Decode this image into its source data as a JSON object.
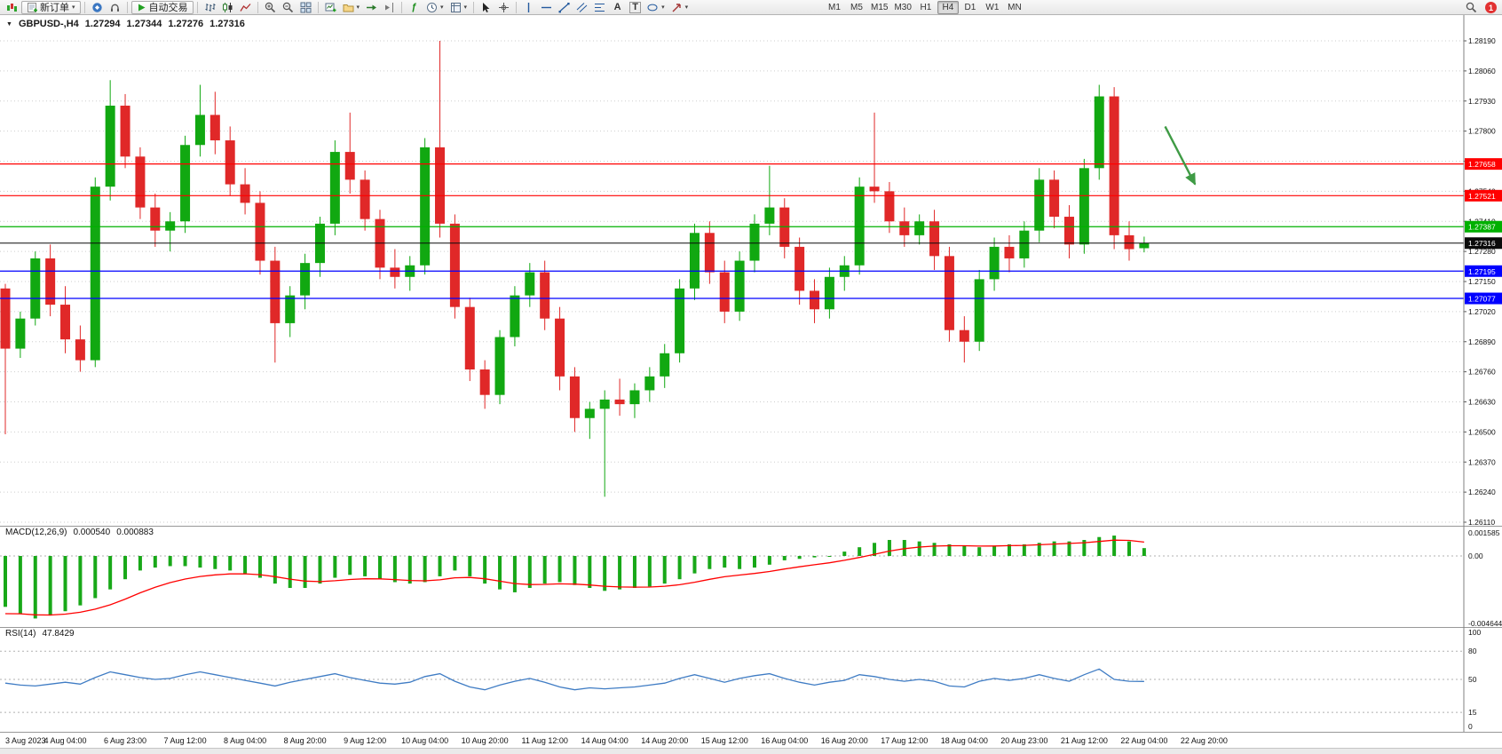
{
  "toolbar": {
    "new_order_label": "新订单",
    "autotrade_label": "自动交易",
    "timeframes": [
      "M1",
      "M5",
      "M15",
      "M30",
      "H1",
      "H4",
      "D1",
      "W1",
      "MN"
    ],
    "active_timeframe": "H4",
    "notification_badge": "1"
  },
  "glyphs": {
    "title_marker": "▼",
    "dropdown_caret": "▾",
    "text_tool": "A",
    "label_tool": "T",
    "indicators_fx": "ƒ"
  },
  "chart_header": {
    "symbol_period": "GBPUSD-,H4",
    "open": "1.27294",
    "high": "1.27344",
    "low": "1.27276",
    "close": "1.27316"
  },
  "chart_data": {
    "type": "candlestick",
    "symbol": "GBPUSD-",
    "period": "H4",
    "title": "GBPUSD-,H4",
    "ylim": [
      1.2611,
      1.2819
    ],
    "y_ticks": [
      "1.28190",
      "1.28060",
      "1.27930",
      "1.27800",
      "1.27670",
      "1.27540",
      "1.27410",
      "1.27280",
      "1.27150",
      "1.27020",
      "1.26890",
      "1.26760",
      "1.26630",
      "1.26500",
      "1.26370",
      "1.26240",
      "1.26110"
    ],
    "x_labels": [
      "3 Aug 2023",
      "4 Aug 04:00",
      "6 Aug 23:00",
      "7 Aug 12:00",
      "8 Aug 04:00",
      "8 Aug 20:00",
      "9 Aug 12:00",
      "10 Aug 04:00",
      "10 Aug 20:00",
      "11 Aug 12:00",
      "14 Aug 04:00",
      "14 Aug 20:00",
      "15 Aug 12:00",
      "16 Aug 04:00",
      "16 Aug 20:00",
      "17 Aug 12:00",
      "18 Aug 04:00",
      "20 Aug 23:00",
      "21 Aug 12:00",
      "22 Aug 04:00",
      "22 Aug 20:00"
    ],
    "candles": [
      [
        1.2712,
        1.2714,
        1.2649,
        1.2686
      ],
      [
        1.2686,
        1.2702,
        1.2682,
        1.2699
      ],
      [
        1.2699,
        1.2728,
        1.2696,
        1.2725
      ],
      [
        1.2725,
        1.2731,
        1.27,
        1.2705
      ],
      [
        1.2705,
        1.2713,
        1.2684,
        1.269
      ],
      [
        1.269,
        1.2696,
        1.2676,
        1.2681
      ],
      [
        1.2681,
        1.276,
        1.2678,
        1.2756
      ],
      [
        1.2756,
        1.2802,
        1.275,
        1.2791
      ],
      [
        1.2791,
        1.2796,
        1.2764,
        1.2769
      ],
      [
        1.2769,
        1.2773,
        1.2742,
        1.2747
      ],
      [
        1.2747,
        1.2753,
        1.273,
        1.2737
      ],
      [
        1.2737,
        1.2745,
        1.2728,
        1.2741
      ],
      [
        1.2741,
        1.2778,
        1.2736,
        1.2774
      ],
      [
        1.2774,
        1.28,
        1.2769,
        1.2787
      ],
      [
        1.2787,
        1.2797,
        1.277,
        1.2776
      ],
      [
        1.2776,
        1.2782,
        1.2752,
        1.2757
      ],
      [
        1.2757,
        1.2764,
        1.2744,
        1.2749
      ],
      [
        1.2749,
        1.2754,
        1.2718,
        1.2724
      ],
      [
        1.2724,
        1.273,
        1.268,
        1.2697
      ],
      [
        1.2697,
        1.2713,
        1.2691,
        1.2709
      ],
      [
        1.2709,
        1.2727,
        1.2703,
        1.2723
      ],
      [
        1.2723,
        1.2743,
        1.2717,
        1.274
      ],
      [
        1.274,
        1.2776,
        1.2735,
        1.2771
      ],
      [
        1.2771,
        1.2788,
        1.2753,
        1.2759
      ],
      [
        1.2759,
        1.2763,
        1.2737,
        1.2742
      ],
      [
        1.2742,
        1.2746,
        1.2716,
        1.2721
      ],
      [
        1.2721,
        1.2729,
        1.2712,
        1.2717
      ],
      [
        1.2717,
        1.2726,
        1.2711,
        1.2722
      ],
      [
        1.2722,
        1.2777,
        1.2718,
        1.2773
      ],
      [
        1.2773,
        1.2819,
        1.2734,
        1.274
      ],
      [
        1.274,
        1.2744,
        1.2699,
        1.2704
      ],
      [
        1.2704,
        1.2708,
        1.2672,
        1.2677
      ],
      [
        1.2677,
        1.2681,
        1.266,
        1.2666
      ],
      [
        1.2666,
        1.2694,
        1.2662,
        1.2691
      ],
      [
        1.2691,
        1.2713,
        1.2687,
        1.2709
      ],
      [
        1.2709,
        1.2723,
        1.2704,
        1.2719
      ],
      [
        1.2719,
        1.2724,
        1.2694,
        1.2699
      ],
      [
        1.2699,
        1.2704,
        1.2668,
        1.2674
      ],
      [
        1.2674,
        1.2678,
        1.265,
        1.2656
      ],
      [
        1.2656,
        1.2663,
        1.2647,
        1.266
      ],
      [
        1.266,
        1.2668,
        1.2622,
        1.2664
      ],
      [
        1.2664,
        1.2673,
        1.2657,
        1.2662
      ],
      [
        1.2662,
        1.2671,
        1.2656,
        1.2668
      ],
      [
        1.2668,
        1.2678,
        1.2663,
        1.2674
      ],
      [
        1.2674,
        1.2688,
        1.2669,
        1.2684
      ],
      [
        1.2684,
        1.2716,
        1.268,
        1.2712
      ],
      [
        1.2712,
        1.274,
        1.2707,
        1.2736
      ],
      [
        1.2736,
        1.2741,
        1.2714,
        1.2719
      ],
      [
        1.2719,
        1.2724,
        1.2697,
        1.2702
      ],
      [
        1.2702,
        1.2728,
        1.2698,
        1.2724
      ],
      [
        1.2724,
        1.2744,
        1.2719,
        1.274
      ],
      [
        1.274,
        1.2765,
        1.2735,
        1.2747
      ],
      [
        1.2747,
        1.2751,
        1.2725,
        1.273
      ],
      [
        1.273,
        1.2734,
        1.2705,
        1.2711
      ],
      [
        1.2711,
        1.2716,
        1.2697,
        1.2703
      ],
      [
        1.2703,
        1.2721,
        1.2699,
        1.2717
      ],
      [
        1.2717,
        1.2726,
        1.2711,
        1.2722
      ],
      [
        1.2722,
        1.276,
        1.2718,
        1.2756
      ],
      [
        1.2756,
        1.2788,
        1.2749,
        1.2754
      ],
      [
        1.2754,
        1.2758,
        1.2736,
        1.2741
      ],
      [
        1.2741,
        1.2747,
        1.273,
        1.2735
      ],
      [
        1.2735,
        1.2744,
        1.2731,
        1.2741
      ],
      [
        1.2741,
        1.2746,
        1.272,
        1.2726
      ],
      [
        1.2726,
        1.273,
        1.2689,
        1.2694
      ],
      [
        1.2694,
        1.27,
        1.268,
        1.2689
      ],
      [
        1.2689,
        1.272,
        1.2685,
        1.2716
      ],
      [
        1.2716,
        1.2734,
        1.2711,
        1.273
      ],
      [
        1.273,
        1.2735,
        1.2719,
        1.2725
      ],
      [
        1.2725,
        1.2741,
        1.2721,
        1.2737
      ],
      [
        1.2737,
        1.2764,
        1.2732,
        1.2759
      ],
      [
        1.2759,
        1.2763,
        1.2738,
        1.2743
      ],
      [
        1.2743,
        1.2748,
        1.2725,
        1.2731
      ],
      [
        1.2731,
        1.2768,
        1.2727,
        1.2764
      ],
      [
        1.2764,
        1.28,
        1.2759,
        1.2795
      ],
      [
        1.2795,
        1.2799,
        1.2729,
        1.2735
      ],
      [
        1.2735,
        1.2741,
        1.2724,
        1.2729
      ],
      [
        1.27294,
        1.27344,
        1.27276,
        1.27316
      ]
    ],
    "hlines": [
      {
        "price": 1.27658,
        "label": "1.27658",
        "color": "#ff0000"
      },
      {
        "price": 1.27521,
        "label": "1.27521",
        "color": "#ff0000"
      },
      {
        "price": 1.27387,
        "label": "1.27387",
        "color": "#00b000"
      },
      {
        "price": 1.27195,
        "label": "1.27195",
        "color": "#0000ff"
      },
      {
        "price": 1.27077,
        "label": "1.27077",
        "color": "#0000ff"
      }
    ],
    "bid": {
      "price": 1.27316,
      "label": "1.27316",
      "color": "#0a0a0a"
    },
    "macd": {
      "label": "MACD(12,26,9)",
      "value": "0.000540",
      "signal": "0.000883",
      "axis": [
        {
          "label": "0.001585",
          "value": 0.001585
        },
        {
          "label": "0.00",
          "value": 0
        },
        {
          "label": "-0.004644",
          "value": -0.004644
        }
      ],
      "histogram": [
        -0.0035,
        -0.004,
        -0.0043,
        -0.0041,
        -0.0038,
        -0.0034,
        -0.0029,
        -0.0023,
        -0.0016,
        -0.001,
        -0.0008,
        -0.0007,
        -0.0007,
        -0.0008,
        -0.0009,
        -0.001,
        -0.0012,
        -0.0015,
        -0.0019,
        -0.0022,
        -0.0022,
        -0.0019,
        -0.0015,
        -0.0013,
        -0.0014,
        -0.0016,
        -0.0018,
        -0.0019,
        -0.0018,
        -0.0014,
        -0.001,
        -0.0014,
        -0.0019,
        -0.0023,
        -0.0025,
        -0.0022,
        -0.0019,
        -0.0018,
        -0.002,
        -0.0022,
        -0.0024,
        -0.0023,
        -0.0022,
        -0.0021,
        -0.0019,
        -0.0016,
        -0.0012,
        -0.0009,
        -0.0008,
        -0.0009,
        -0.0008,
        -0.0006,
        -0.0003,
        -0.0002,
        -0.0001,
        0.0,
        0.0003,
        0.0006,
        0.0009,
        0.0011,
        0.0011,
        0.001,
        0.0009,
        0.0008,
        0.0007,
        0.0006,
        0.0007,
        0.0008,
        0.0008,
        0.0009,
        0.001,
        0.001,
        0.0011,
        0.0013,
        0.0014,
        0.001,
        0.00054
      ]
    },
    "rsi": {
      "label": "RSI(14)",
      "value": "47.8429",
      "levels": [
        {
          "label": "100",
          "value": 100,
          "line": false
        },
        {
          "label": "80",
          "value": 80,
          "line": true
        },
        {
          "label": "50",
          "value": 50,
          "line": true
        },
        {
          "label": "15",
          "value": 15,
          "line": true
        },
        {
          "label": "0",
          "value": 0,
          "line": false
        }
      ],
      "series": [
        46,
        44,
        43,
        45,
        47,
        45,
        52,
        58,
        55,
        52,
        50,
        51,
        55,
        58,
        55,
        52,
        49,
        46,
        43,
        47,
        50,
        53,
        56,
        52,
        49,
        46,
        45,
        47,
        53,
        56,
        48,
        42,
        39,
        44,
        48,
        51,
        47,
        42,
        39,
        41,
        40,
        41,
        42,
        44,
        46,
        51,
        55,
        51,
        47,
        51,
        54,
        56,
        51,
        47,
        44,
        47,
        49,
        55,
        53,
        50,
        48,
        50,
        48,
        43,
        42,
        48,
        51,
        49,
        51,
        55,
        51,
        48,
        55,
        61,
        50,
        48,
        47.8
      ]
    },
    "colors": {
      "up": "#11a811",
      "down": "#e02828",
      "macd_hist": "#18a818",
      "macd_signal": "#ff0000",
      "rsi": "#3f7cc4",
      "grid": "#cdcdcd"
    },
    "arrow": {
      "color": "#3f9b45",
      "from_index": 77.4,
      "from_price": 1.2782,
      "to_index": 79.4,
      "to_price": 1.2757
    }
  }
}
